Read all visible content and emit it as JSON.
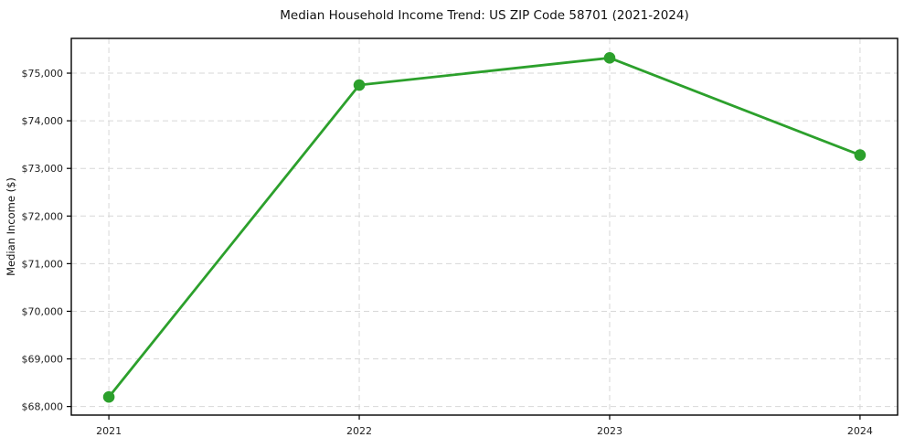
{
  "figure": {
    "background": "#ffffff",
    "title": "Median Household Income Trend: US ZIP Code 58701 (2021-2024)"
  },
  "chart_data": {
    "type": "line",
    "title": "Median Household Income Trend: US ZIP Code 58701 (2021-2024)",
    "xlabel": "",
    "ylabel": "Median Income ($)",
    "x": [
      2021,
      2022,
      2023,
      2024
    ],
    "x_tick_labels": [
      "2021",
      "2022",
      "2023",
      "2024"
    ],
    "values": [
      68200,
      74750,
      75320,
      73280
    ],
    "y_ticks": [
      68000,
      69000,
      70000,
      71000,
      72000,
      73000,
      74000,
      75000
    ],
    "y_tick_labels": [
      "$68,000",
      "$69,000",
      "$70,000",
      "$71,000",
      "$72,000",
      "$73,000",
      "$74,000",
      "$75,000"
    ],
    "xlim": [
      2020.85,
      2024.15
    ],
    "ylim": [
      67820,
      75730
    ],
    "grid": true,
    "grid_style": "dashed",
    "legend_position": "none",
    "colors": {
      "line": "#2ca02c",
      "marker": "#2ca02c",
      "grid": "#d7d7d7",
      "axis": "#000000",
      "text": "#111111",
      "background": "#ffffff"
    }
  }
}
